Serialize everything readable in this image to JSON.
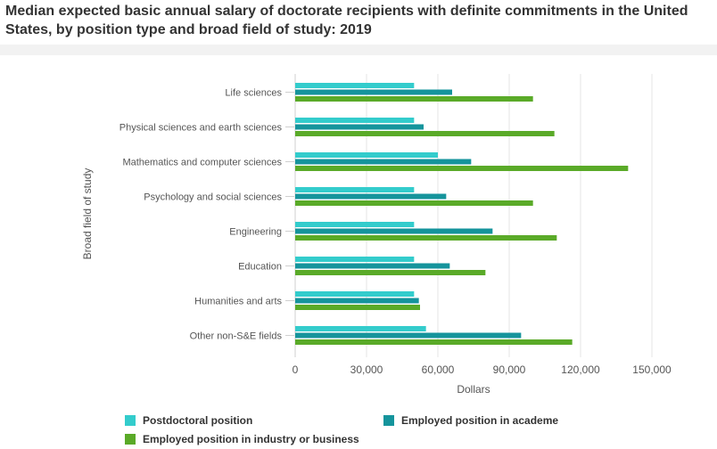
{
  "title": "Median expected basic annual salary of doctorate recipients with definite commitments in the United States, by position type and broad field of study: 2019",
  "chart_data": {
    "type": "bar",
    "orientation": "horizontal",
    "title": "Median expected basic annual salary of doctorate recipients with definite commitments in the United States, by position type and broad field of study: 2019",
    "xlabel": "Dollars",
    "ylabel": "Broad field of study",
    "xlim": [
      0,
      150000
    ],
    "xticks": [
      0,
      30000,
      60000,
      90000,
      120000,
      150000
    ],
    "xtick_labels": [
      "0",
      "30,000",
      "60,000",
      "90,000",
      "120,000",
      "150,000"
    ],
    "grid": true,
    "legend_position": "bottom",
    "categories": [
      "Life sciences",
      "Physical sciences and earth sciences",
      "Mathematics and computer sciences",
      "Psychology and social sciences",
      "Engineering",
      "Education",
      "Humanities and arts",
      "Other non-S&E fields"
    ],
    "series": [
      {
        "name": "Postdoctoral position",
        "color": "#33cccc",
        "values": [
          50000,
          50000,
          60000,
          50000,
          50000,
          50000,
          50000,
          55000
        ]
      },
      {
        "name": "Employed position in academe",
        "color": "#15949c",
        "values": [
          66000,
          54000,
          74000,
          63500,
          83000,
          65000,
          52000,
          95000
        ]
      },
      {
        "name": "Employed position in industry or business",
        "color": "#5aaa28",
        "values": [
          100000,
          109000,
          140000,
          100000,
          110000,
          80000,
          52500,
          116500
        ]
      }
    ]
  }
}
